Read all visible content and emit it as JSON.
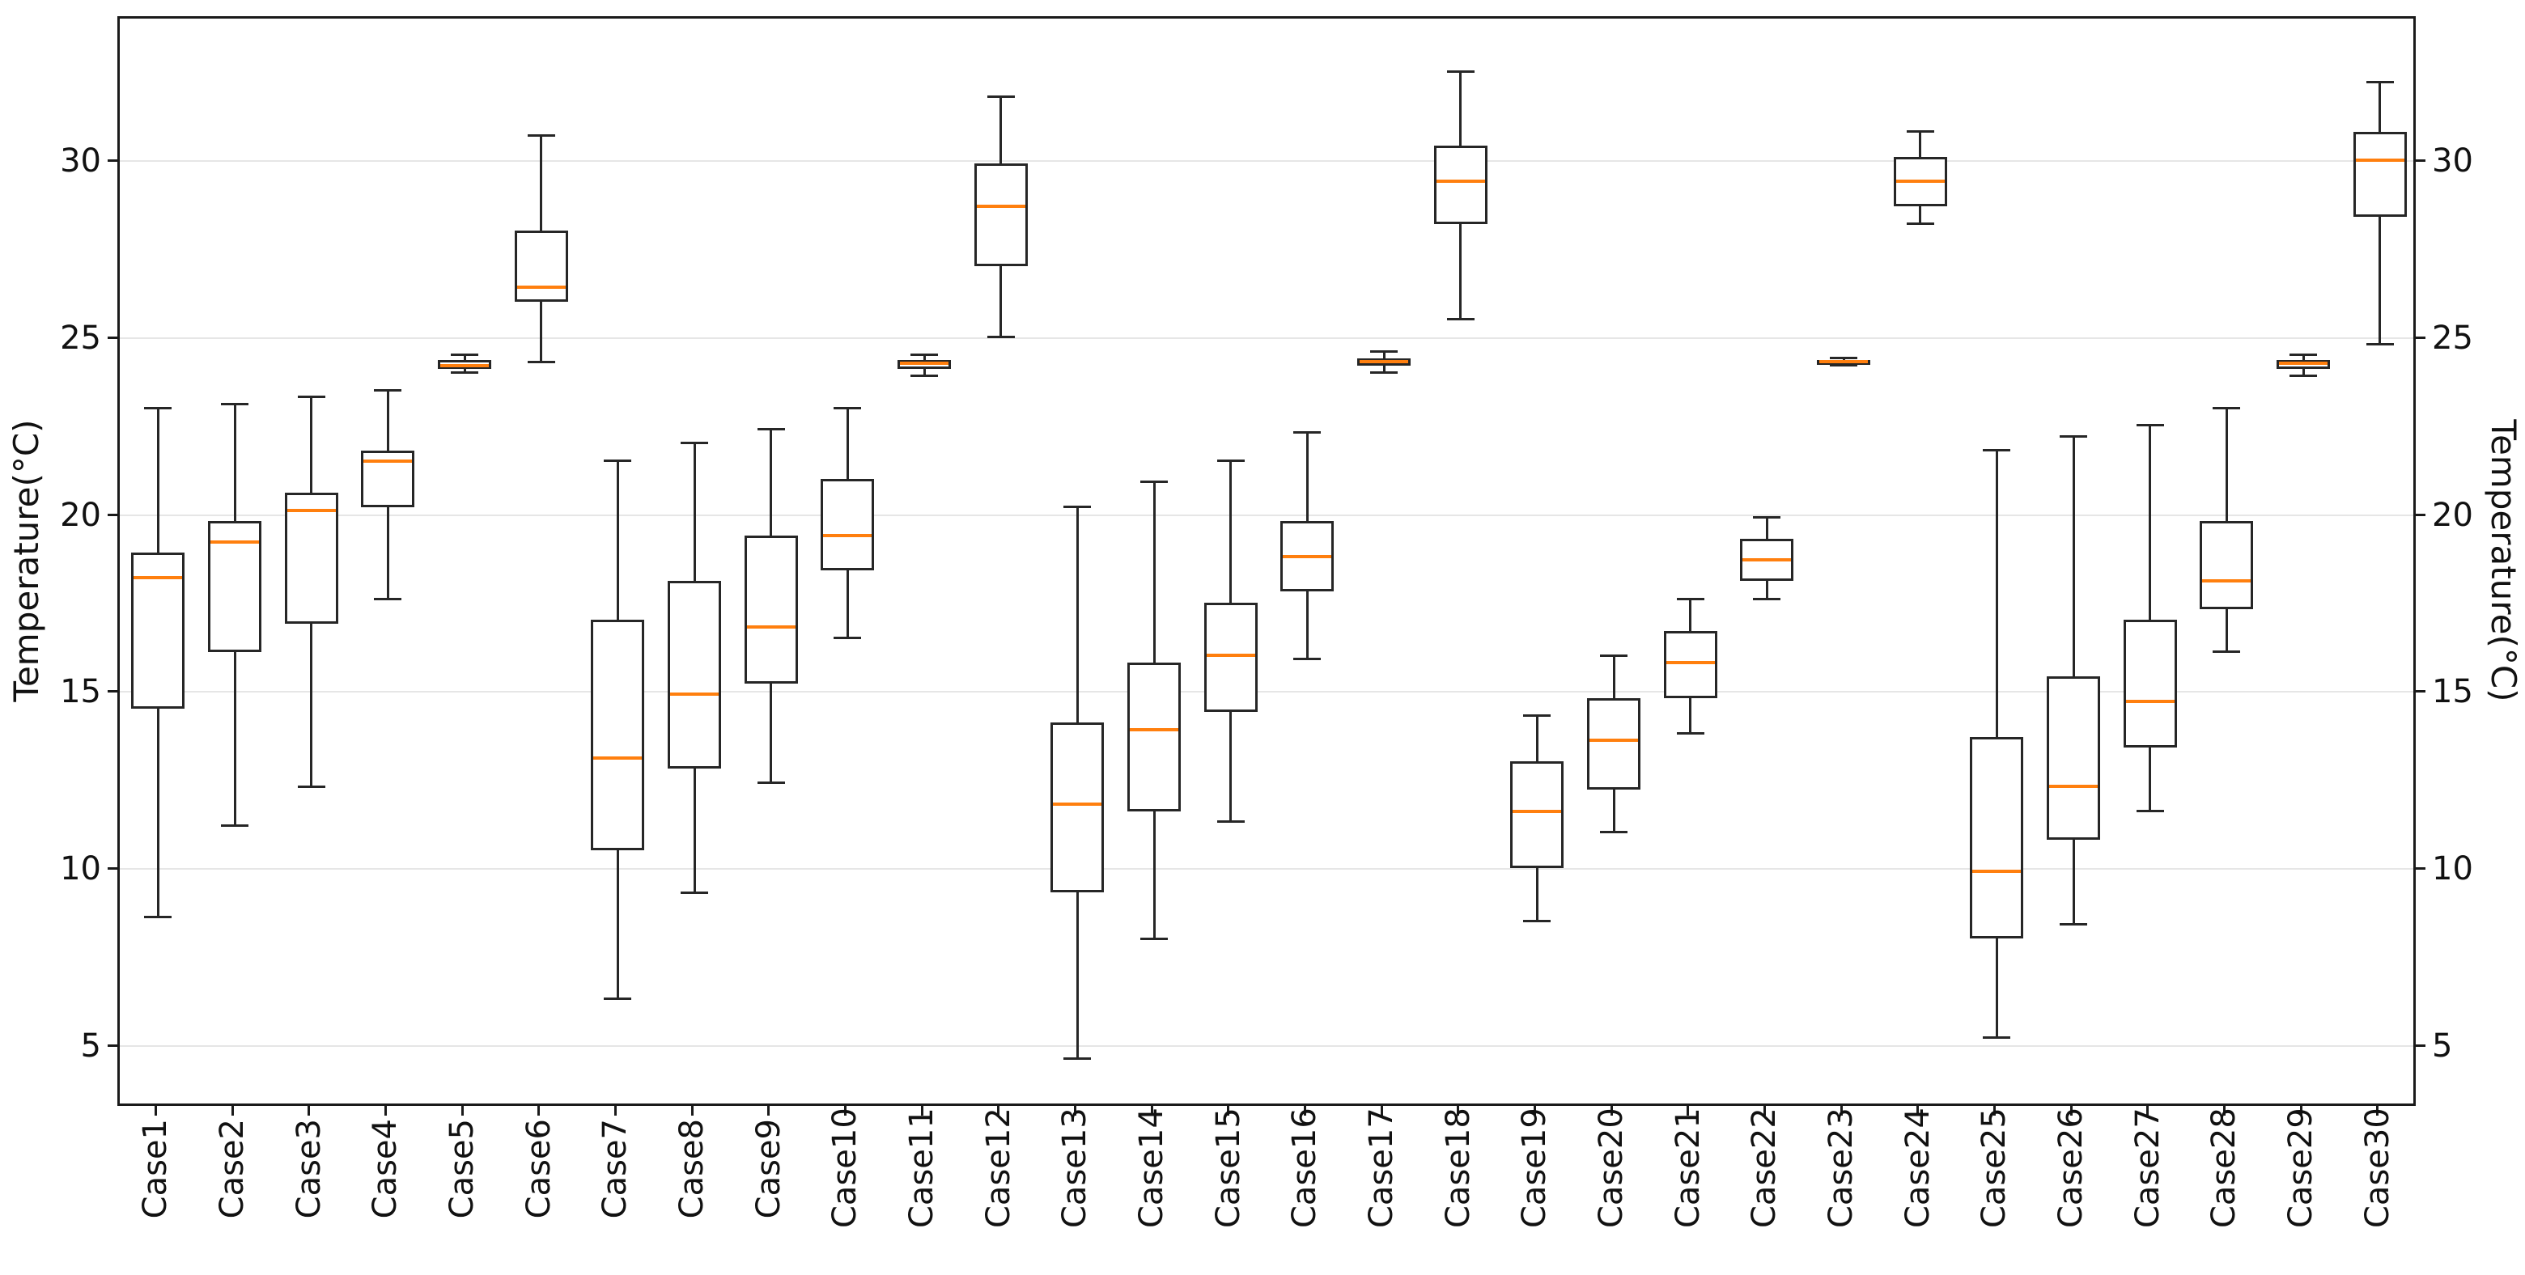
{
  "chart_data": {
    "type": "boxplot",
    "title": "",
    "xlabel": "",
    "ylabel": "Temperature(°C)",
    "ylabel_right": "Temperature(°C)",
    "ylim": [
      3.3,
      34.1
    ],
    "yticks": [
      5,
      10,
      15,
      20,
      25,
      30
    ],
    "grid": "horizontal light-gray lines at each y tick, white background, dark frame on all four sides",
    "legend": "none",
    "box_edge_color": "#262626",
    "median_color": "#ff7f0e",
    "categories": [
      "Case1",
      "Case2",
      "Case3",
      "Case4",
      "Case5",
      "Case6",
      "Case7",
      "Case8",
      "Case9",
      "Case10",
      "Case11",
      "Case12",
      "Case13",
      "Case14",
      "Case15",
      "Case16",
      "Case17",
      "Case18",
      "Case19",
      "Case20",
      "Case21",
      "Case22",
      "Case23",
      "Case24",
      "Case25",
      "Case26",
      "Case27",
      "Case28",
      "Case29",
      "Case30"
    ],
    "series": [
      {
        "name": "Case1",
        "min": 8.7,
        "q1": 14.6,
        "median": 18.3,
        "q3": 19.0,
        "max": 23.1
      },
      {
        "name": "Case2",
        "min": 11.3,
        "q1": 16.2,
        "median": 19.3,
        "q3": 19.9,
        "max": 23.2
      },
      {
        "name": "Case3",
        "min": 12.4,
        "q1": 17.0,
        "median": 20.2,
        "q3": 20.7,
        "max": 23.4
      },
      {
        "name": "Case4",
        "min": 17.7,
        "q1": 20.3,
        "median": 21.6,
        "q3": 21.9,
        "max": 23.6
      },
      {
        "name": "Case5",
        "min": 24.1,
        "q1": 24.2,
        "median": 24.3,
        "q3": 24.45,
        "max": 24.6
      },
      {
        "name": "Case6",
        "min": 24.4,
        "q1": 26.1,
        "median": 26.5,
        "q3": 28.1,
        "max": 30.8
      },
      {
        "name": "Case7",
        "min": 6.4,
        "q1": 10.6,
        "median": 13.2,
        "q3": 17.1,
        "max": 21.6
      },
      {
        "name": "Case8",
        "min": 9.4,
        "q1": 12.9,
        "median": 15.0,
        "q3": 18.2,
        "max": 22.1
      },
      {
        "name": "Case9",
        "min": 12.5,
        "q1": 15.3,
        "median": 16.9,
        "q3": 19.5,
        "max": 22.5
      },
      {
        "name": "Case10",
        "min": 16.6,
        "q1": 18.5,
        "median": 19.5,
        "q3": 21.1,
        "max": 23.1
      },
      {
        "name": "Case11",
        "min": 24.0,
        "q1": 24.2,
        "median": 24.35,
        "q3": 24.45,
        "max": 24.6
      },
      {
        "name": "Case12",
        "min": 25.1,
        "q1": 27.1,
        "median": 28.8,
        "q3": 30.0,
        "max": 31.9
      },
      {
        "name": "Case13",
        "min": 4.7,
        "q1": 9.4,
        "median": 11.9,
        "q3": 14.2,
        "max": 20.3
      },
      {
        "name": "Case14",
        "min": 8.1,
        "q1": 11.7,
        "median": 14.0,
        "q3": 15.9,
        "max": 21.0
      },
      {
        "name": "Case15",
        "min": 11.4,
        "q1": 14.5,
        "median": 16.1,
        "q3": 17.6,
        "max": 21.6
      },
      {
        "name": "Case16",
        "min": 16.0,
        "q1": 17.9,
        "median": 18.9,
        "q3": 19.9,
        "max": 22.4
      },
      {
        "name": "Case17",
        "min": 24.1,
        "q1": 24.3,
        "median": 24.4,
        "q3": 24.5,
        "max": 24.7
      },
      {
        "name": "Case18",
        "min": 25.6,
        "q1": 28.3,
        "median": 29.5,
        "q3": 30.5,
        "max": 32.6
      },
      {
        "name": "Case19",
        "min": 8.6,
        "q1": 10.1,
        "median": 11.7,
        "q3": 13.1,
        "max": 14.4
      },
      {
        "name": "Case20",
        "min": 11.1,
        "q1": 12.3,
        "median": 13.7,
        "q3": 14.9,
        "max": 16.1
      },
      {
        "name": "Case21",
        "min": 13.9,
        "q1": 14.9,
        "median": 15.9,
        "q3": 16.8,
        "max": 17.7
      },
      {
        "name": "Case22",
        "min": 17.7,
        "q1": 18.2,
        "median": 18.8,
        "q3": 19.4,
        "max": 20.0
      },
      {
        "name": "Case23",
        "min": 24.3,
        "q1": 24.35,
        "median": 24.4,
        "q3": 24.45,
        "max": 24.5
      },
      {
        "name": "Case24",
        "min": 28.3,
        "q1": 28.8,
        "median": 29.5,
        "q3": 30.2,
        "max": 30.9
      },
      {
        "name": "Case25",
        "min": 5.3,
        "q1": 8.1,
        "median": 10.0,
        "q3": 13.8,
        "max": 21.9
      },
      {
        "name": "Case26",
        "min": 8.5,
        "q1": 10.9,
        "median": 12.4,
        "q3": 15.5,
        "max": 22.3
      },
      {
        "name": "Case27",
        "min": 11.7,
        "q1": 13.5,
        "median": 14.8,
        "q3": 17.1,
        "max": 22.6
      },
      {
        "name": "Case28",
        "min": 16.2,
        "q1": 17.4,
        "median": 18.2,
        "q3": 19.9,
        "max": 23.1
      },
      {
        "name": "Case29",
        "min": 24.0,
        "q1": 24.2,
        "median": 24.35,
        "q3": 24.45,
        "max": 24.6
      },
      {
        "name": "Case30",
        "min": 24.9,
        "q1": 28.5,
        "median": 30.1,
        "q3": 30.9,
        "max": 32.3
      }
    ]
  }
}
